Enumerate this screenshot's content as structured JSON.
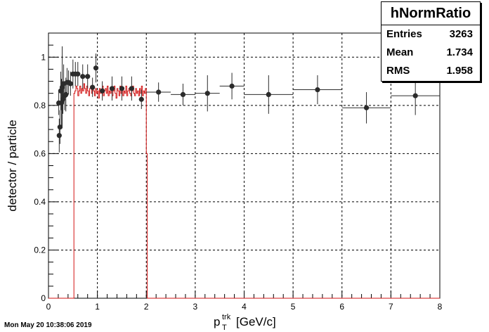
{
  "chart_data": {
    "type": "scatter",
    "title": "",
    "xlabel_main": "p",
    "xlabel_sup": "trk",
    "xlabel_sub": "T",
    "xlabel_unit": "[GeV/c]",
    "ylabel": "detector / particle",
    "xlim": [
      0,
      8
    ],
    "ylim": [
      0,
      1.1
    ],
    "xticks": [
      "0",
      "1",
      "2",
      "3",
      "4",
      "5",
      "6",
      "7",
      "8"
    ],
    "yticks": [
      "0",
      "0.2",
      "0.4",
      "0.6",
      "0.8",
      "1"
    ],
    "grid": true,
    "stats_box": {
      "title": "hNormRatio",
      "rows": [
        {
          "label": "Entries",
          "value": "3263"
        },
        {
          "label": "Mean",
          "value": "1.734"
        },
        {
          "label": "RMS",
          "value": "1.958"
        }
      ]
    },
    "series": [
      {
        "color": "#2b2b2b",
        "points": [
          {
            "x": 0.21,
            "y": 0.81,
            "xerr": 0.01,
            "yerr": 0.05
          },
          {
            "x": 0.22,
            "y": 0.675,
            "xerr": 0.01,
            "yerr": 0.07
          },
          {
            "x": 0.235,
            "y": 0.71,
            "xerr": 0.01,
            "yerr": 0.07
          },
          {
            "x": 0.25,
            "y": 0.86,
            "xerr": 0.01,
            "yerr": 0.08
          },
          {
            "x": 0.265,
            "y": 0.81,
            "xerr": 0.01,
            "yerr": 0.1
          },
          {
            "x": 0.28,
            "y": 0.875,
            "xerr": 0.01,
            "yerr": 0.17
          },
          {
            "x": 0.295,
            "y": 0.825,
            "xerr": 0.01,
            "yerr": 0.06
          },
          {
            "x": 0.31,
            "y": 0.89,
            "xerr": 0.01,
            "yerr": 0.08
          },
          {
            "x": 0.33,
            "y": 0.84,
            "xerr": 0.015,
            "yerr": 0.06
          },
          {
            "x": 0.355,
            "y": 0.845,
            "xerr": 0.02,
            "yerr": 0.07
          },
          {
            "x": 0.38,
            "y": 0.895,
            "xerr": 0.02,
            "yerr": 0.06
          },
          {
            "x": 0.41,
            "y": 0.895,
            "xerr": 0.02,
            "yerr": 0.05
          },
          {
            "x": 0.45,
            "y": 0.89,
            "xerr": 0.025,
            "yerr": 0.05
          },
          {
            "x": 0.5,
            "y": 0.93,
            "xerr": 0.025,
            "yerr": 0.06
          },
          {
            "x": 0.55,
            "y": 0.93,
            "xerr": 0.025,
            "yerr": 0.05
          },
          {
            "x": 0.6,
            "y": 0.93,
            "xerr": 0.025,
            "yerr": 0.05
          },
          {
            "x": 0.7,
            "y": 0.92,
            "xerr": 0.05,
            "yerr": 0.05
          },
          {
            "x": 0.8,
            "y": 0.92,
            "xerr": 0.05,
            "yerr": 0.05
          },
          {
            "x": 0.9,
            "y": 0.875,
            "xerr": 0.05,
            "yerr": 0.04
          },
          {
            "x": 0.97,
            "y": 0.955,
            "xerr": 0.03,
            "yerr": 0.06
          },
          {
            "x": 1.1,
            "y": 0.86,
            "xerr": 0.05,
            "yerr": 0.04
          },
          {
            "x": 1.3,
            "y": 0.87,
            "xerr": 0.05,
            "yerr": 0.05
          },
          {
            "x": 1.5,
            "y": 0.87,
            "xerr": 0.05,
            "yerr": 0.05
          },
          {
            "x": 1.7,
            "y": 0.87,
            "xerr": 0.05,
            "yerr": 0.05
          },
          {
            "x": 1.9,
            "y": 0.825,
            "xerr": 0.05,
            "yerr": 0.04
          },
          {
            "x": 2.25,
            "y": 0.855,
            "xerr": 0.25,
            "yerr": 0.04
          },
          {
            "x": 2.75,
            "y": 0.845,
            "xerr": 0.25,
            "yerr": 0.045
          },
          {
            "x": 3.25,
            "y": 0.85,
            "xerr": 0.25,
            "yerr": 0.075
          },
          {
            "x": 3.75,
            "y": 0.88,
            "xerr": 0.25,
            "yerr": 0.055
          },
          {
            "x": 4.5,
            "y": 0.845,
            "xerr": 0.5,
            "yerr": 0.08
          },
          {
            "x": 5.5,
            "y": 0.865,
            "xerr": 0.5,
            "yerr": 0.06
          },
          {
            "x": 6.5,
            "y": 0.79,
            "xerr": 0.5,
            "yerr": 0.065
          },
          {
            "x": 7.5,
            "y": 0.84,
            "xerr": 0.5,
            "yerr": 0.08
          }
        ]
      },
      {
        "color": "#d21414",
        "type": "step",
        "x": [
          0.0,
          0.52,
          0.54,
          0.56,
          0.58,
          0.6,
          0.62,
          0.64,
          0.66,
          0.68,
          0.7,
          0.72,
          0.74,
          0.76,
          0.78,
          0.8,
          0.82,
          0.84,
          0.86,
          0.88,
          0.9,
          0.92,
          0.94,
          0.96,
          0.98,
          1.0,
          1.02,
          1.04,
          1.06,
          1.08,
          1.1,
          1.12,
          1.14,
          1.16,
          1.18,
          1.2,
          1.22,
          1.24,
          1.26,
          1.28,
          1.3,
          1.32,
          1.34,
          1.36,
          1.38,
          1.4,
          1.42,
          1.44,
          1.46,
          1.48,
          1.5,
          1.52,
          1.54,
          1.56,
          1.58,
          1.6,
          1.62,
          1.64,
          1.66,
          1.68,
          1.7,
          1.72,
          1.74,
          1.76,
          1.78,
          1.8,
          1.82,
          1.84,
          1.86,
          1.88,
          1.9,
          1.92,
          1.94,
          1.96,
          1.98,
          2.0,
          2.02,
          8.0
        ],
        "y": [
          0,
          0.85,
          0.86,
          0.88,
          0.87,
          0.84,
          0.86,
          0.88,
          0.85,
          0.87,
          0.86,
          0.89,
          0.87,
          0.85,
          0.88,
          0.86,
          0.84,
          0.87,
          0.88,
          0.85,
          0.87,
          0.86,
          0.84,
          0.87,
          0.85,
          0.86,
          0.83,
          0.87,
          0.85,
          0.86,
          0.88,
          0.84,
          0.86,
          0.87,
          0.85,
          0.88,
          0.84,
          0.86,
          0.85,
          0.87,
          0.84,
          0.86,
          0.88,
          0.85,
          0.83,
          0.87,
          0.86,
          0.84,
          0.88,
          0.85,
          0.87,
          0.84,
          0.86,
          0.85,
          0.88,
          0.84,
          0.86,
          0.87,
          0.85,
          0.84,
          0.86,
          0.88,
          0.85,
          0.84,
          0.87,
          0.85,
          0.86,
          0.84,
          0.87,
          0.85,
          0.88,
          0.84,
          0.86,
          0.85,
          0.87,
          0.6,
          0,
          0
        ]
      }
    ]
  },
  "timestamp": "Mon May 20 10:38:06 2019"
}
